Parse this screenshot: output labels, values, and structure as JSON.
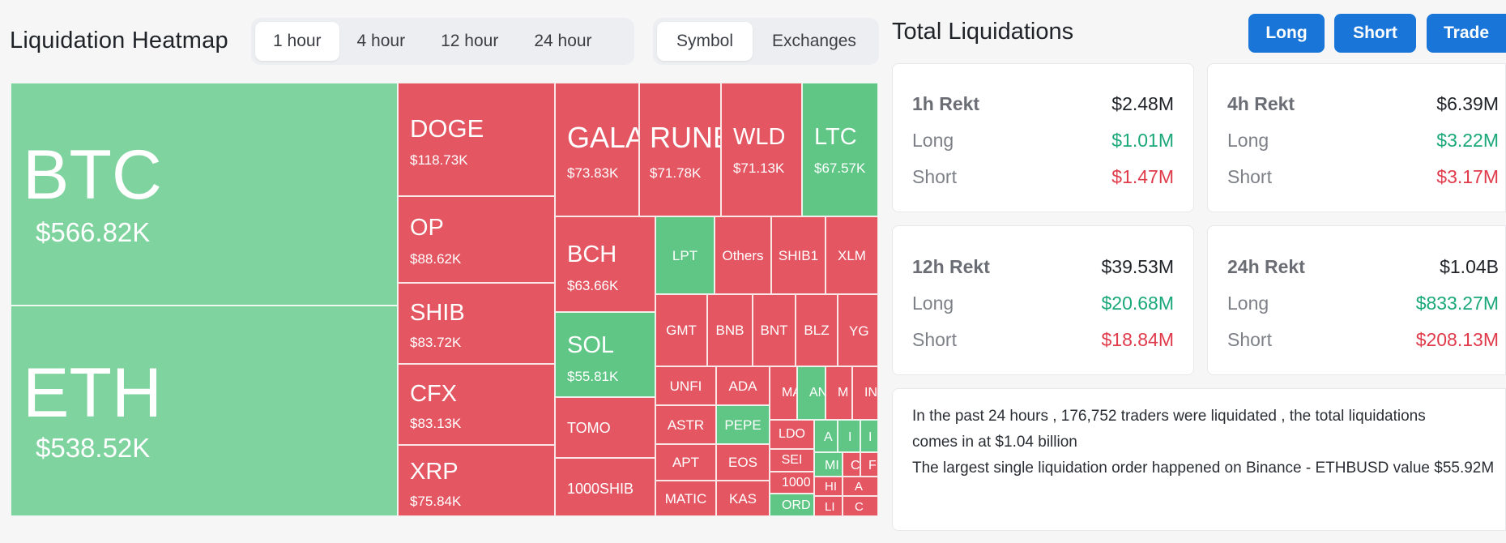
{
  "heatmap": {
    "title": "Liquidation Heatmap",
    "time_options": [
      "1 hour",
      "4 hour",
      "12 hour",
      "24 hour"
    ],
    "selected_time": "1 hour",
    "mode_options": [
      "Symbol",
      "Exchanges"
    ],
    "selected_mode": "Symbol",
    "colors": {
      "long_liq": "#7fd39e",
      "short_liq": "#e35662",
      "bright_green": "#5fc685"
    },
    "tiles": {
      "btc": {
        "symbol": "BTC",
        "value": "$566.82K"
      },
      "eth": {
        "symbol": "ETH",
        "value": "$538.52K"
      },
      "doge": {
        "symbol": "DOGE",
        "value": "$118.73K"
      },
      "op": {
        "symbol": "OP",
        "value": "$88.62K"
      },
      "shib": {
        "symbol": "SHIB",
        "value": "$83.72K"
      },
      "cfx": {
        "symbol": "CFX",
        "value": "$83.13K"
      },
      "xrp": {
        "symbol": "XRP",
        "value": "$75.84K"
      },
      "gala": {
        "symbol": "GALA",
        "value": "$73.83K"
      },
      "rune": {
        "symbol": "RUNE",
        "value": "$71.78K"
      },
      "wld": {
        "symbol": "WLD",
        "value": "$71.13K"
      },
      "ltc": {
        "symbol": "LTC",
        "value": "$67.57K"
      },
      "bch": {
        "symbol": "BCH",
        "value": "$63.66K"
      },
      "sol": {
        "symbol": "SOL",
        "value": "$55.81K"
      },
      "tomo": {
        "symbol": "TOMO"
      },
      "shib1000": {
        "symbol": "1000SHIB"
      },
      "lpt": {
        "symbol": "LPT"
      },
      "others": {
        "symbol": "Others"
      },
      "shib1": {
        "symbol": "SHIB1"
      },
      "xlm": {
        "symbol": "XLM"
      },
      "gmt": {
        "symbol": "GMT"
      },
      "bnb": {
        "symbol": "BNB"
      },
      "bnt": {
        "symbol": "BNT"
      },
      "blz": {
        "symbol": "BLZ"
      },
      "ygg": {
        "symbol": "YG"
      },
      "unfi": {
        "symbol": "UNFI"
      },
      "ada": {
        "symbol": "ADA"
      },
      "ma": {
        "symbol": "MA"
      },
      "an": {
        "symbol": "AN"
      },
      "m1": {
        "symbol": "M"
      },
      "in": {
        "symbol": "IN"
      },
      "astr": {
        "symbol": "ASTR"
      },
      "pepe": {
        "symbol": "PEPE"
      },
      "ldo": {
        "symbol": "LDO"
      },
      "a1": {
        "symbol": "A"
      },
      "i1": {
        "symbol": "I"
      },
      "i2": {
        "symbol": "I"
      },
      "apt": {
        "symbol": "APT"
      },
      "eos": {
        "symbol": "EOS"
      },
      "sei": {
        "symbol": "SEI"
      },
      "mi": {
        "symbol": "MI"
      },
      "c1": {
        "symbol": "C"
      },
      "f1": {
        "symbol": "F"
      },
      "x1000": {
        "symbol": "1000"
      },
      "hi": {
        "symbol": "HI"
      },
      "a2": {
        "symbol": "A"
      },
      "matic": {
        "symbol": "MATIC"
      },
      "kas": {
        "symbol": "KAS"
      },
      "ord": {
        "symbol": "ORD"
      },
      "li": {
        "symbol": "LI"
      },
      "c2": {
        "symbol": "C"
      }
    }
  },
  "liquidations": {
    "title": "Total Liquidations",
    "buttons": {
      "long": "Long",
      "short": "Short",
      "trade": "Trade"
    },
    "cards": [
      {
        "label": "1h Rekt",
        "total": "$2.48M",
        "long_label": "Long",
        "long": "$1.01M",
        "short_label": "Short",
        "short": "$1.47M"
      },
      {
        "label": "4h Rekt",
        "total": "$6.39M",
        "long_label": "Long",
        "long": "$3.22M",
        "short_label": "Short",
        "short": "$3.17M"
      },
      {
        "label": "12h Rekt",
        "total": "$39.53M",
        "long_label": "Long",
        "long": "$20.68M",
        "short_label": "Short",
        "short": "$18.84M"
      },
      {
        "label": "24h Rekt",
        "total": "$1.04B",
        "long_label": "Long",
        "long": "$833.27M",
        "short_label": "Short",
        "short": "$208.13M"
      }
    ],
    "summary": {
      "line1": "In the past 24 hours , 176,752 traders were liquidated , the total liquidations comes in at $1.04 billion",
      "line2": "The largest single liquidation order happened on Binance - ETHBUSD value $55.92M"
    }
  }
}
